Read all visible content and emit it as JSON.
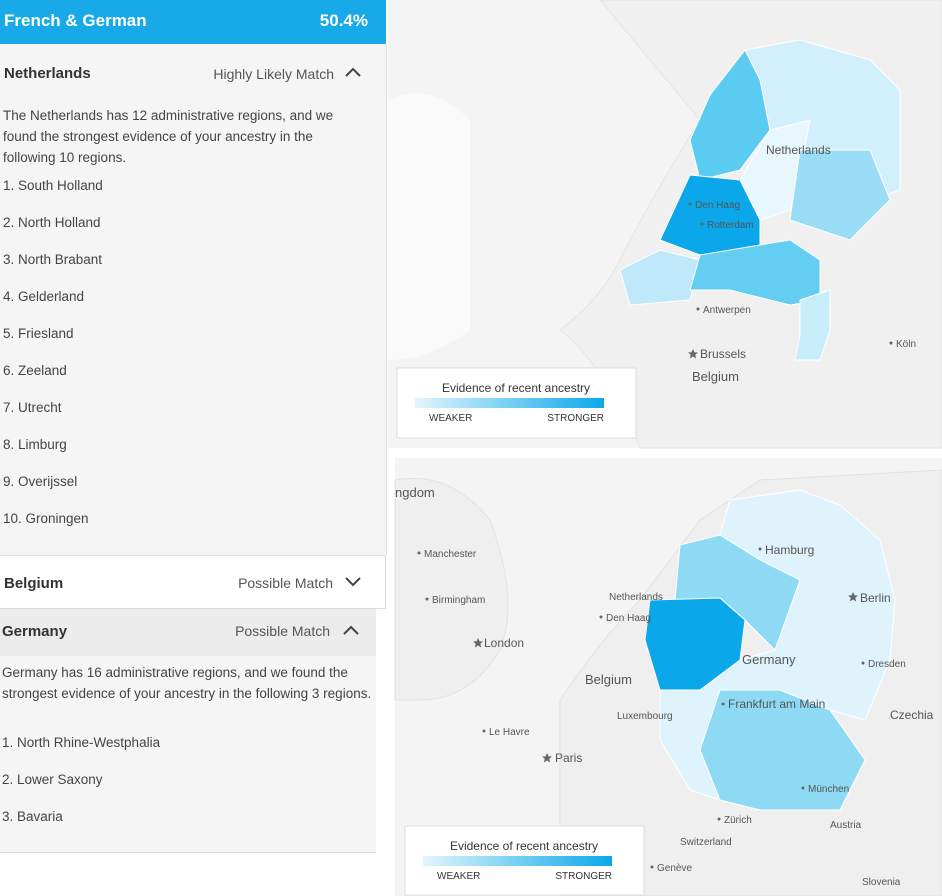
{
  "header": {
    "title": "French & German",
    "percent": "50.4%"
  },
  "sections": [
    {
      "name": "Netherlands",
      "match": "Highly Likely Match",
      "description": "The Netherlands has 12 administrative regions, and we found the strongest evidence of your ancestry in the following 10 regions.",
      "regions": [
        "1. South Holland",
        "2. North Holland",
        "3. North Brabant",
        "4. Gelderland",
        "5. Friesland",
        "6. Zeeland",
        "7. Utrecht",
        "8. Limburg",
        "9. Overijssel",
        "10. Groningen"
      ]
    },
    {
      "name": "Belgium",
      "match": "Possible Match"
    },
    {
      "name": "Germany",
      "match": "Possible Match",
      "description": "Germany has 16 administrative regions, and we found the strongest evidence of your ancestry in the following 3 regions.",
      "regions": [
        "1. North Rhine-Westphalia",
        "2. Lower Saxony",
        "3. Bavaria"
      ]
    }
  ],
  "maps": [
    {
      "labels": [
        "Netherlands",
        "Den Haag",
        "Rotterdam",
        "Antwerpen",
        "Brussels",
        "Belgium",
        "Köln"
      ],
      "legend": {
        "title": "Evidence of recent ancestry",
        "weaker": "WEAKER",
        "stronger": "STRONGER"
      }
    },
    {
      "labels": [
        "ngdom",
        "Manchester",
        "Hamburg",
        "Netherlands",
        "Berlin",
        "Birmingham",
        "Den Haag",
        "London",
        "Germany",
        "Dresden",
        "Belgium",
        "Luxembourg",
        "Frankfurt am Main",
        "Czechia",
        "Le Havre",
        "Paris",
        "München",
        "Zürich",
        "Austria",
        "Switzerland",
        "Genève",
        "Slovenia"
      ],
      "legend": {
        "title": "Evidence of recent ancestry",
        "weaker": "WEAKER",
        "stronger": "STRONGER"
      }
    }
  ]
}
